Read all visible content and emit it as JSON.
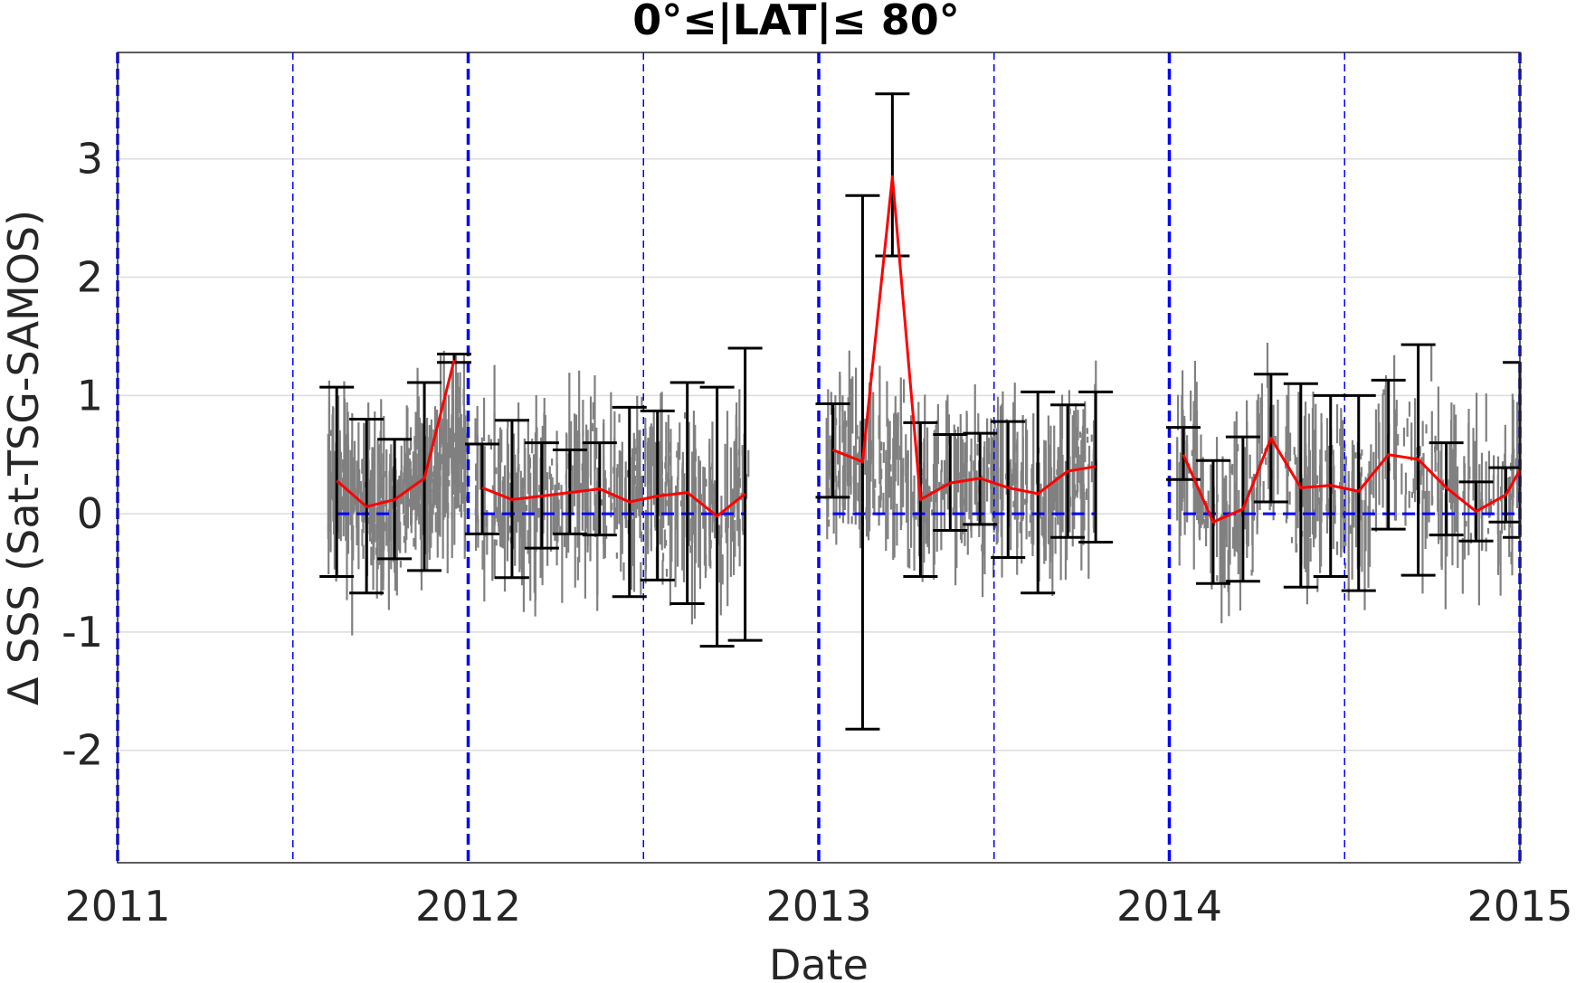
{
  "chart_data": {
    "type": "scatter",
    "title": "0°≤|LAT|≤ 80°",
    "xlabel": "Date",
    "ylabel": "Δ SSS (Sat-TSG-SAMOS)",
    "xlim": [
      2011,
      2015
    ],
    "ylim": [
      -2.95,
      3.9
    ],
    "x_ticks": [
      "2011",
      "2012",
      "2013",
      "2014",
      "2015"
    ],
    "y_ticks": [
      "-2",
      "-1",
      "0",
      "1",
      "2",
      "3"
    ],
    "grid": true,
    "colors": {
      "scatter": "#808080",
      "mean_line": "#ff0000",
      "error_bars": "#000000",
      "reference_lines": "#0000ff",
      "grid": "#dcdcdc"
    },
    "reference_lines": {
      "year_boundaries": [
        2011,
        2012,
        2013,
        2014,
        2015
      ],
      "mid_year": [
        2011.5,
        2012.5,
        2013.5,
        2014.5
      ],
      "zero_line_segments": [
        [
          2011.625,
          2011.79
        ],
        [
          2012.04,
          2012.79
        ],
        [
          2013.04,
          2013.79
        ],
        [
          2014.04,
          2015.0
        ]
      ]
    },
    "series": [
      {
        "segment": "2011",
        "x": [
          2011.625,
          2011.71,
          2011.79,
          2011.875,
          2011.96
        ],
        "mean": [
          0.28,
          0.06,
          0.12,
          0.3,
          1.3
        ],
        "upper": [
          1.07,
          0.8,
          0.63,
          1.11,
          1.35
        ],
        "lower": [
          -0.53,
          -0.67,
          -0.38,
          -0.48,
          1.28
        ]
      },
      {
        "segment": "2012",
        "x": [
          2012.04,
          2012.125,
          2012.21,
          2012.29,
          2012.375,
          2012.46,
          2012.54,
          2012.625,
          2012.71,
          2012.79
        ],
        "mean": [
          0.22,
          0.12,
          0.15,
          0.18,
          0.21,
          0.1,
          0.15,
          0.18,
          -0.02,
          0.17
        ],
        "upper": [
          0.59,
          0.79,
          0.6,
          0.54,
          0.6,
          0.9,
          0.87,
          1.11,
          1.07,
          1.4
        ],
        "lower": [
          -0.17,
          -0.54,
          -0.29,
          -0.17,
          -0.18,
          -0.7,
          -0.56,
          -0.76,
          -1.12,
          -1.07
        ]
      },
      {
        "segment": "2013",
        "x": [
          2013.04,
          2013.125,
          2013.21,
          2013.29,
          2013.375,
          2013.46,
          2013.54,
          2013.625,
          2013.71,
          2013.79
        ],
        "mean": [
          0.54,
          0.44,
          2.85,
          0.12,
          0.26,
          0.3,
          0.22,
          0.17,
          0.36,
          0.4
        ],
        "upper": [
          0.93,
          2.69,
          3.55,
          0.77,
          0.67,
          0.68,
          0.78,
          1.03,
          0.92,
          1.03
        ],
        "lower": [
          0.14,
          -1.82,
          2.18,
          -0.53,
          -0.14,
          -0.09,
          -0.37,
          -0.67,
          -0.2,
          -0.24
        ]
      },
      {
        "segment": "2014",
        "x": [
          2014.04,
          2014.125,
          2014.21,
          2014.29,
          2014.375,
          2014.46,
          2014.54,
          2014.625,
          2014.71,
          2014.79,
          2014.875,
          2014.96,
          2015.0
        ],
        "mean": [
          0.5,
          -0.07,
          0.04,
          0.64,
          0.22,
          0.24,
          0.19,
          0.5,
          0.46,
          0.22,
          0.02,
          0.16,
          0.37
        ],
        "upper": [
          0.73,
          0.45,
          0.65,
          1.18,
          1.1,
          1.0,
          1.0,
          1.13,
          1.43,
          0.6,
          0.27,
          0.39,
          1.28
        ],
        "lower": [
          0.29,
          -0.59,
          -0.57,
          0.1,
          -0.62,
          -0.53,
          -0.65,
          -0.13,
          -0.52,
          -0.18,
          -0.23,
          -0.07,
          -0.2
        ]
      }
    ],
    "scatter_clusters": [
      {
        "x": [
          2011.6,
          2012.0
        ],
        "spread": 0.55
      },
      {
        "x": [
          2012.02,
          2012.8
        ],
        "spread": 0.65
      },
      {
        "x": [
          2013.02,
          2013.8
        ],
        "spread": 0.55
      },
      {
        "x": [
          2014.02,
          2015.0
        ],
        "spread": 0.6
      }
    ]
  }
}
